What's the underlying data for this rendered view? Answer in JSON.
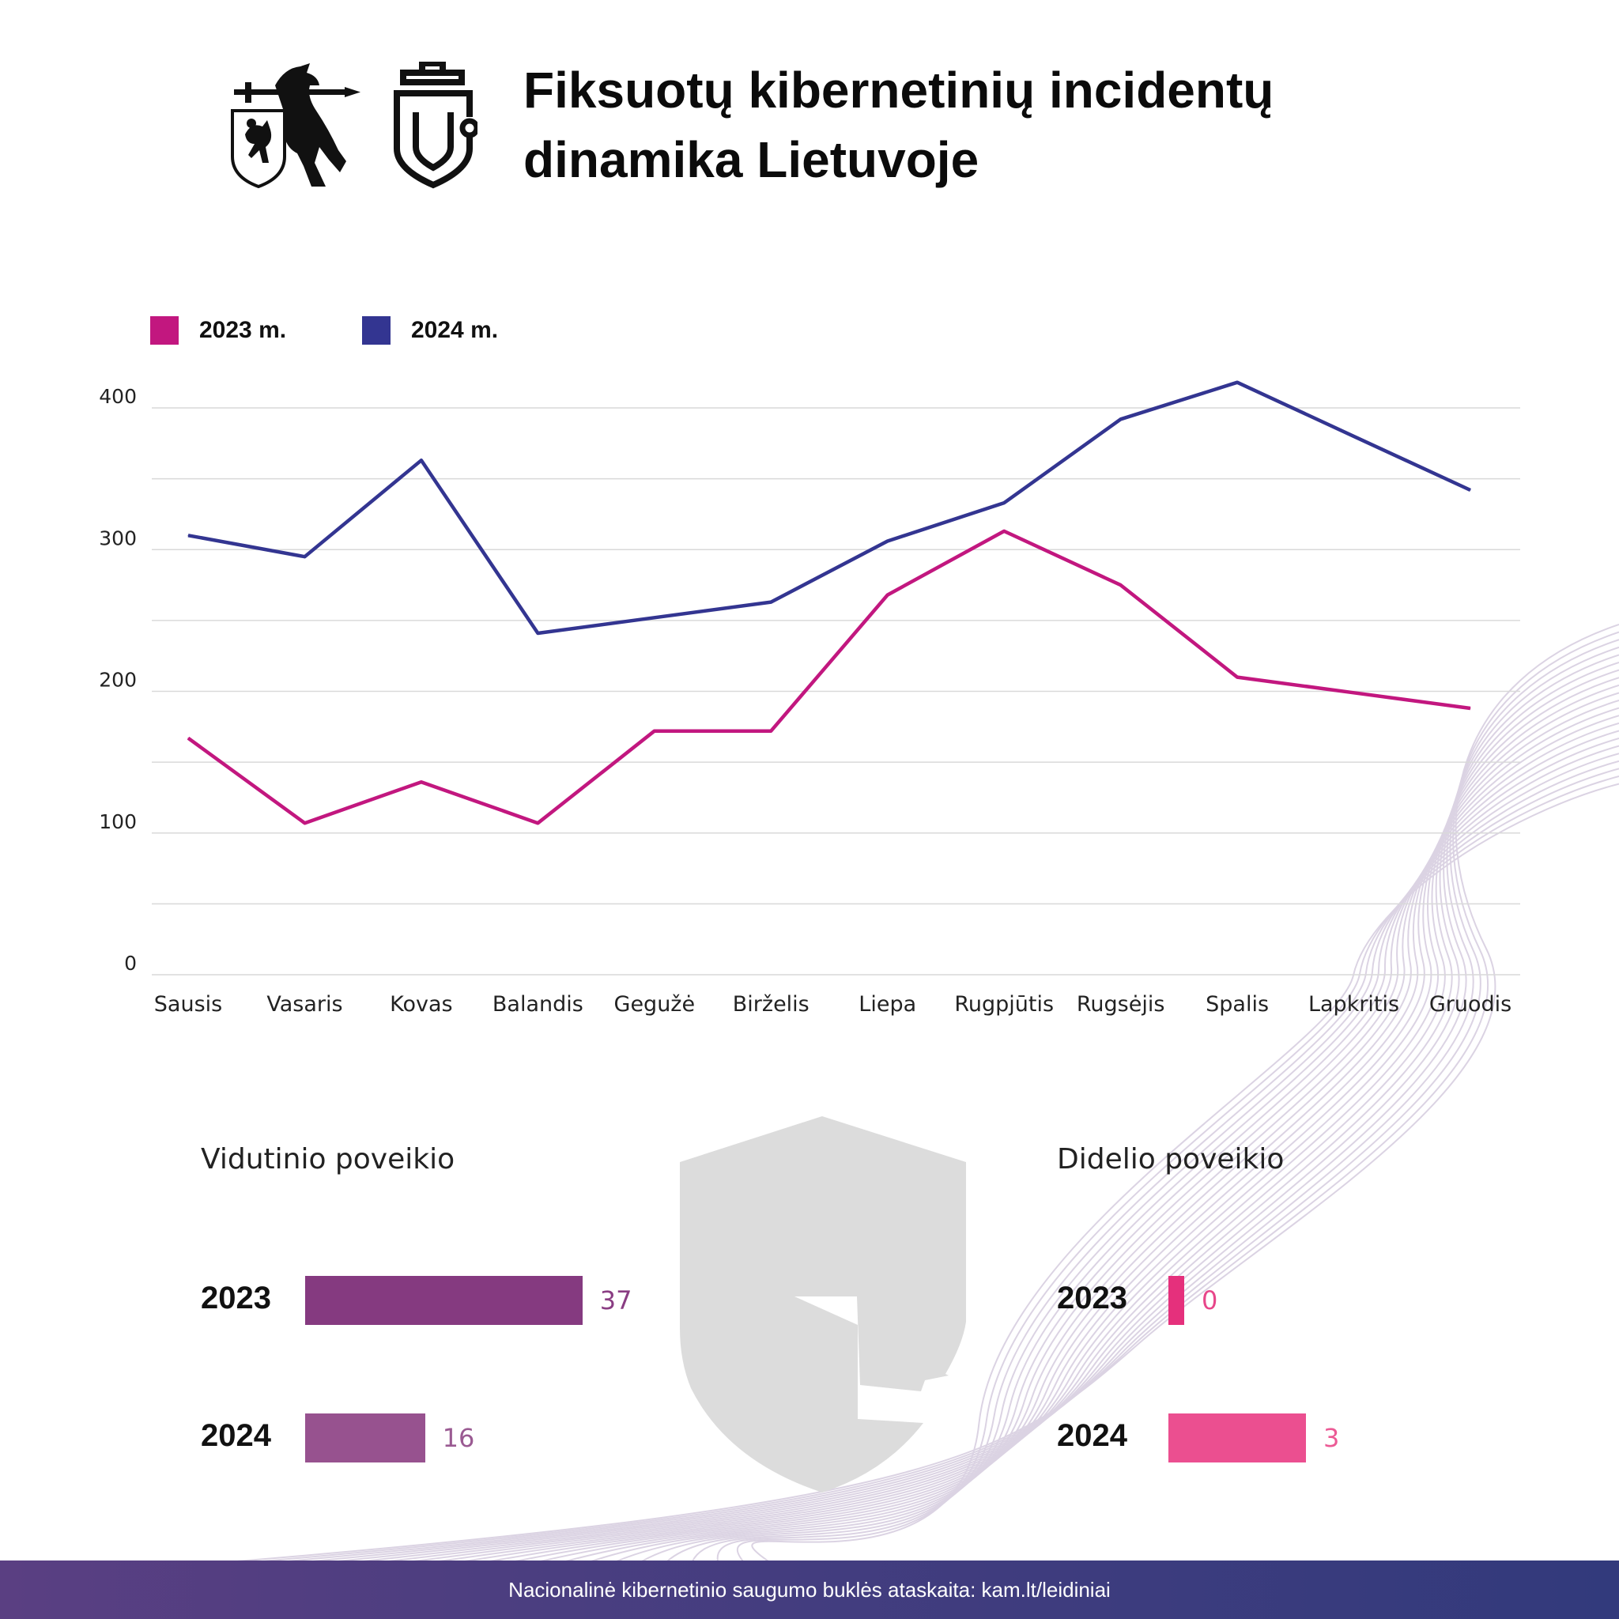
{
  "header": {
    "title_line1": "Fiksuotų kibernetinių incidentų",
    "title_line2": "dinamika Lietuvoje"
  },
  "legend": [
    {
      "label": "2023 m.",
      "color": "#c2177f"
    },
    {
      "label": "2024 m.",
      "color": "#333591"
    }
  ],
  "chart_data": {
    "type": "line",
    "categories": [
      "Sausis",
      "Vasaris",
      "Kovas",
      "Balandis",
      "Gegužė",
      "Birželis",
      "Liepa",
      "Rugpjūtis",
      "Rugsėjis",
      "Spalis",
      "Lapkritis",
      "Gruodis"
    ],
    "series": [
      {
        "name": "2023 m.",
        "color": "#c2177f",
        "values": [
          167,
          107,
          136,
          107,
          172,
          172,
          268,
          313,
          275,
          210,
          199,
          188
        ]
      },
      {
        "name": "2024 m.",
        "color": "#333591",
        "values": [
          310,
          295,
          363,
          241,
          252,
          263,
          306,
          333,
          392,
          418,
          380,
          342
        ]
      }
    ],
    "yticks": [
      0,
      100,
      200,
      300,
      400
    ],
    "ylim": [
      0,
      400
    ],
    "grid": true,
    "legend_position": "top-left"
  },
  "impact": {
    "medium": {
      "title": "Vidutinio poveikio",
      "rows": [
        {
          "year": "2023",
          "value": 37,
          "value_label": "37",
          "color": "#853a80",
          "text_color": "#8a3d83"
        },
        {
          "year": "2024",
          "value": 16,
          "value_label": "16",
          "color": "#97528f",
          "text_color": "#9a5a92"
        }
      ]
    },
    "high": {
      "title": "Didelio poveikio",
      "rows": [
        {
          "year": "2023",
          "value": 0,
          "value_label": "0",
          "color": "#e5307c",
          "text_color": "#e8468a"
        },
        {
          "year": "2024",
          "value": 3,
          "value_label": "3",
          "color": "#eb4f90",
          "text_color": "#ec5a95"
        }
      ]
    }
  },
  "footer": {
    "text": "Nacionalinė kibernetinio saugumo buklės ataskaita: kam.lt/leidiniai"
  }
}
